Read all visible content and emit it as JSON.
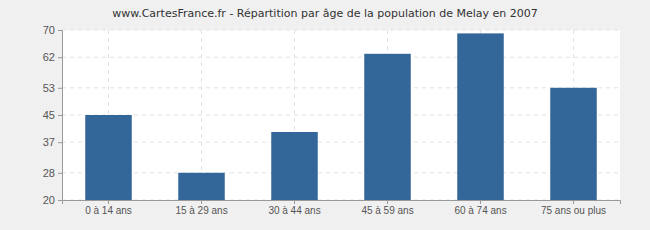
{
  "chart_data": {
    "type": "bar",
    "title": "www.CartesFrance.fr - Répartition par âge de la population de Melay en 2007",
    "categories": [
      "0 à 14 ans",
      "15 à 29 ans",
      "30 à 44 ans",
      "45 à 59 ans",
      "60 à 74 ans",
      "75 ans ou plus"
    ],
    "values": [
      45,
      28,
      40,
      63,
      69,
      53
    ],
    "color": "#336699",
    "ylim": [
      20,
      70
    ],
    "yticks": [
      20,
      28,
      37,
      45,
      53,
      62,
      70
    ],
    "grid": true
  }
}
